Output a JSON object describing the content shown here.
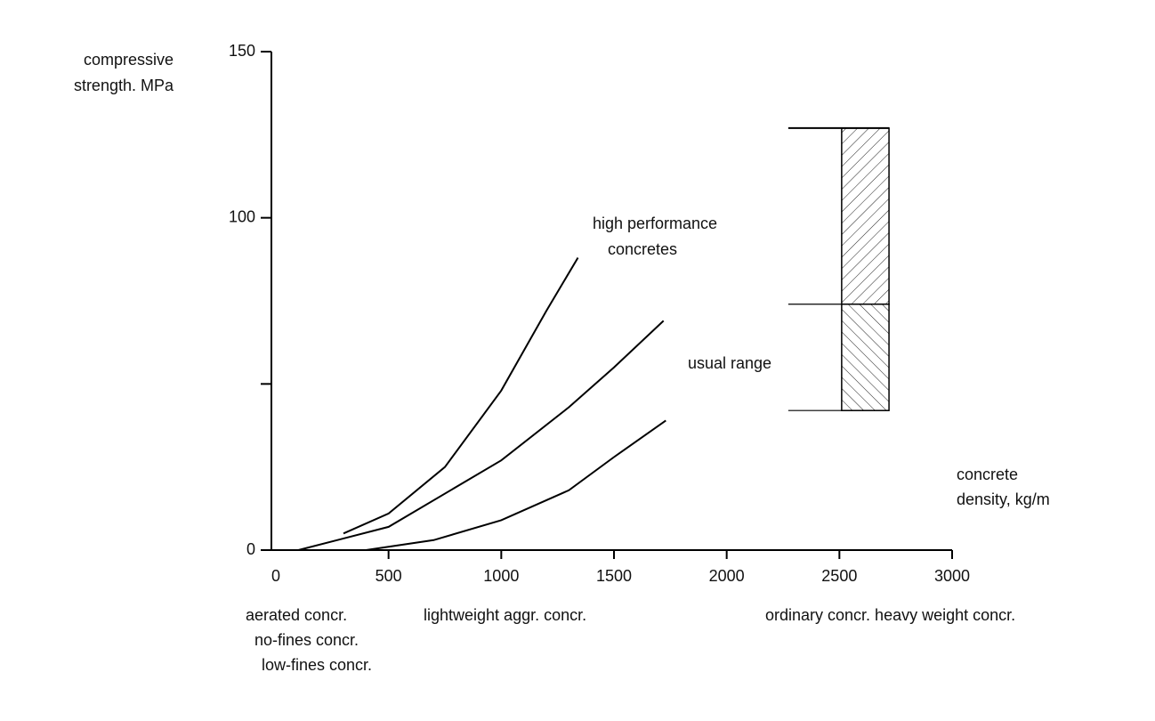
{
  "chart_data": {
    "type": "line",
    "y_label": [
      "compressive",
      "strength. MPa"
    ],
    "x_label": [
      "concrete",
      "density, kg/m"
    ],
    "xlim": [
      0,
      3000
    ],
    "xticks": [
      0,
      500,
      1000,
      1500,
      2000,
      2500,
      3000
    ],
    "ylim": [
      0,
      150
    ],
    "yticks": [
      0,
      {
        "value": 50,
        "label": null
      },
      100,
      150
    ],
    "grid": false,
    "series": [
      {
        "color": "#000000",
        "x": [
          300,
          500,
          750,
          1000,
          1200,
          1340
        ],
        "values": [
          5,
          11,
          25,
          48,
          72,
          88
        ]
      },
      {
        "color": "#000000",
        "x": [
          100,
          500,
          1000,
          1300,
          1500,
          1720
        ],
        "values": [
          0,
          7,
          27,
          43,
          55,
          69
        ]
      },
      {
        "color": "#000000",
        "x": [
          400,
          700,
          1000,
          1300,
          1500,
          1730
        ],
        "values": [
          0,
          3,
          9,
          18,
          28,
          39
        ]
      }
    ],
    "range": {
      "name": "usual range",
      "xrange": [
        2510,
        2720
      ],
      "low": 42,
      "mid": 74,
      "high": 127
    },
    "annotations": [
      "high performance",
      "concretes"
    ],
    "x_groups": [
      "aerated concr.",
      "no-fines concr.",
      "low-fines concr.",
      "lightweight aggr. concr.",
      "ordinary concr. heavy weight concr."
    ]
  }
}
